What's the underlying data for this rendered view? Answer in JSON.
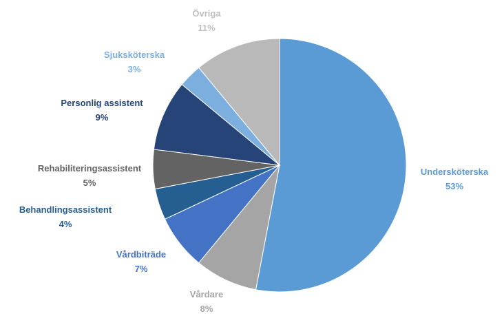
{
  "chart_data": {
    "type": "pie",
    "categories": [
      "Undersköterska",
      "Vårdare",
      "Vårdbiträde",
      "Behandlingsassistent",
      "Rehabiliteringsassistent",
      "Personlig assistent",
      "Sjuksköterska",
      "Övriga"
    ],
    "values": [
      53,
      8,
      7,
      4,
      5,
      9,
      3,
      11
    ],
    "value_labels": [
      "53%",
      "8%",
      "7%",
      "4%",
      "5%",
      "9%",
      "3%",
      "11%"
    ],
    "colors": [
      "#5b9bd5",
      "#a5a5a5",
      "#4472c4",
      "#255e91",
      "#636363",
      "#264478",
      "#7cafdd",
      "#b9b9b9"
    ]
  }
}
